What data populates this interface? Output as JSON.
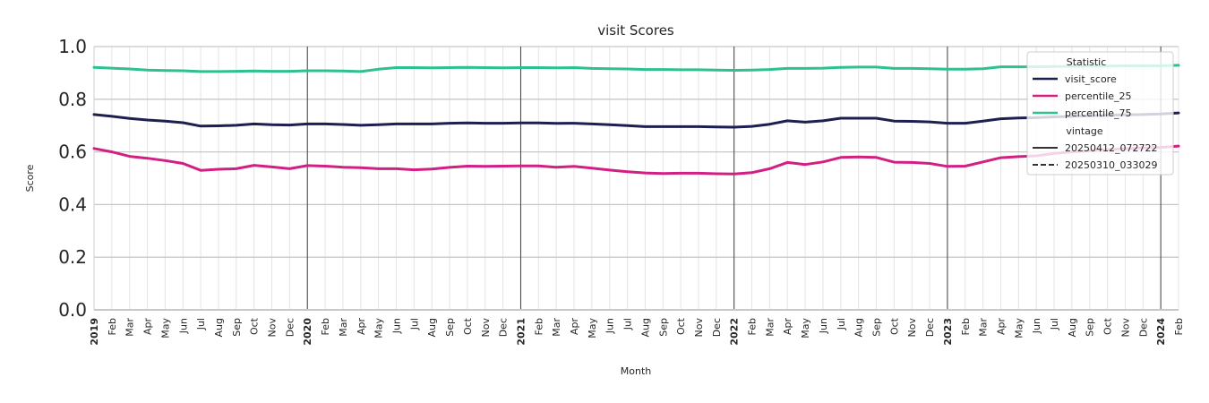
{
  "chart_data": {
    "type": "line",
    "title": "visit Scores",
    "xlabel": "Month",
    "ylabel": "Score",
    "ylim": [
      0,
      1.0
    ],
    "yticks": [
      "0.0",
      "0.2",
      "0.4",
      "0.6",
      "0.8",
      "1.0"
    ],
    "x_tick_labels": [
      "2019",
      "Feb",
      "Mar",
      "Apr",
      "May",
      "Jun",
      "Jul",
      "Aug",
      "Sep",
      "Oct",
      "Nov",
      "Dec",
      "2020",
      "Feb",
      "Mar",
      "Apr",
      "May",
      "Jun",
      "Jul",
      "Aug",
      "Sep",
      "Oct",
      "Nov",
      "Dec",
      "2021",
      "Feb",
      "Mar",
      "Apr",
      "May",
      "Jun",
      "Jul",
      "Aug",
      "Sep",
      "Oct",
      "Nov",
      "Dec",
      "2022",
      "Feb",
      "Mar",
      "Apr",
      "May",
      "Jun",
      "Jul",
      "Aug",
      "Sep",
      "Oct",
      "Nov",
      "Dec",
      "2023",
      "Feb",
      "Mar",
      "Apr",
      "May",
      "Jun",
      "Jul",
      "Aug",
      "Sep",
      "Oct",
      "Nov",
      "Dec",
      "2024",
      "Feb"
    ],
    "year_labels": [
      "2019",
      "2020",
      "2021",
      "2022",
      "2023",
      "2024"
    ],
    "grid": true,
    "series": [
      {
        "name": "visit_score",
        "color": "#1d1f4f",
        "values": [
          0.742,
          0.735,
          0.727,
          0.721,
          0.717,
          0.711,
          0.698,
          0.699,
          0.701,
          0.706,
          0.703,
          0.702,
          0.706,
          0.706,
          0.704,
          0.701,
          0.703,
          0.706,
          0.706,
          0.706,
          0.709,
          0.71,
          0.709,
          0.709,
          0.71,
          0.71,
          0.708,
          0.709,
          0.706,
          0.703,
          0.7,
          0.696,
          0.696,
          0.696,
          0.696,
          0.695,
          0.694,
          0.697,
          0.705,
          0.718,
          0.713,
          0.718,
          0.728,
          0.728,
          0.728,
          0.717,
          0.716,
          0.714,
          0.709,
          0.709,
          0.717,
          0.726,
          0.729,
          0.73,
          0.733,
          0.735,
          0.737,
          0.739,
          0.741,
          0.742,
          0.744,
          0.748
        ]
      },
      {
        "name": "percentile_25",
        "color": "#d21f84",
        "values": [
          0.613,
          0.6,
          0.583,
          0.576,
          0.567,
          0.556,
          0.53,
          0.534,
          0.536,
          0.549,
          0.543,
          0.536,
          0.548,
          0.546,
          0.542,
          0.54,
          0.536,
          0.536,
          0.532,
          0.535,
          0.541,
          0.546,
          0.545,
          0.546,
          0.547,
          0.547,
          0.542,
          0.545,
          0.538,
          0.531,
          0.525,
          0.52,
          0.518,
          0.519,
          0.519,
          0.517,
          0.516,
          0.521,
          0.536,
          0.56,
          0.552,
          0.562,
          0.579,
          0.581,
          0.579,
          0.561,
          0.56,
          0.556,
          0.545,
          0.546,
          0.562,
          0.578,
          0.582,
          0.585,
          0.594,
          0.6,
          0.605,
          0.609,
          0.612,
          0.615,
          0.617,
          0.622
        ]
      },
      {
        "name": "percentile_75",
        "color": "#2ec08e",
        "values": [
          0.921,
          0.918,
          0.915,
          0.911,
          0.909,
          0.908,
          0.905,
          0.905,
          0.906,
          0.907,
          0.906,
          0.906,
          0.908,
          0.908,
          0.907,
          0.905,
          0.914,
          0.92,
          0.92,
          0.919,
          0.92,
          0.921,
          0.92,
          0.919,
          0.92,
          0.92,
          0.919,
          0.92,
          0.917,
          0.916,
          0.915,
          0.913,
          0.913,
          0.912,
          0.912,
          0.911,
          0.91,
          0.911,
          0.913,
          0.917,
          0.917,
          0.918,
          0.921,
          0.922,
          0.922,
          0.917,
          0.917,
          0.916,
          0.914,
          0.914,
          0.916,
          0.923,
          0.923,
          0.923,
          0.924,
          0.925,
          0.926,
          0.926,
          0.927,
          0.927,
          0.927,
          0.929
        ]
      }
    ],
    "legend": {
      "placement": "top-right",
      "group_titles": [
        "Statistic",
        "vintage"
      ],
      "statistic_items": [
        {
          "label": "visit_score",
          "color": "#1d1f4f"
        },
        {
          "label": "percentile_25",
          "color": "#d21f84"
        },
        {
          "label": "percentile_75",
          "color": "#2ec08e"
        }
      ],
      "vintage_items": [
        {
          "label": "20250412_072722",
          "style": "solid"
        },
        {
          "label": "20250310_033029",
          "style": "dashed"
        }
      ]
    }
  }
}
